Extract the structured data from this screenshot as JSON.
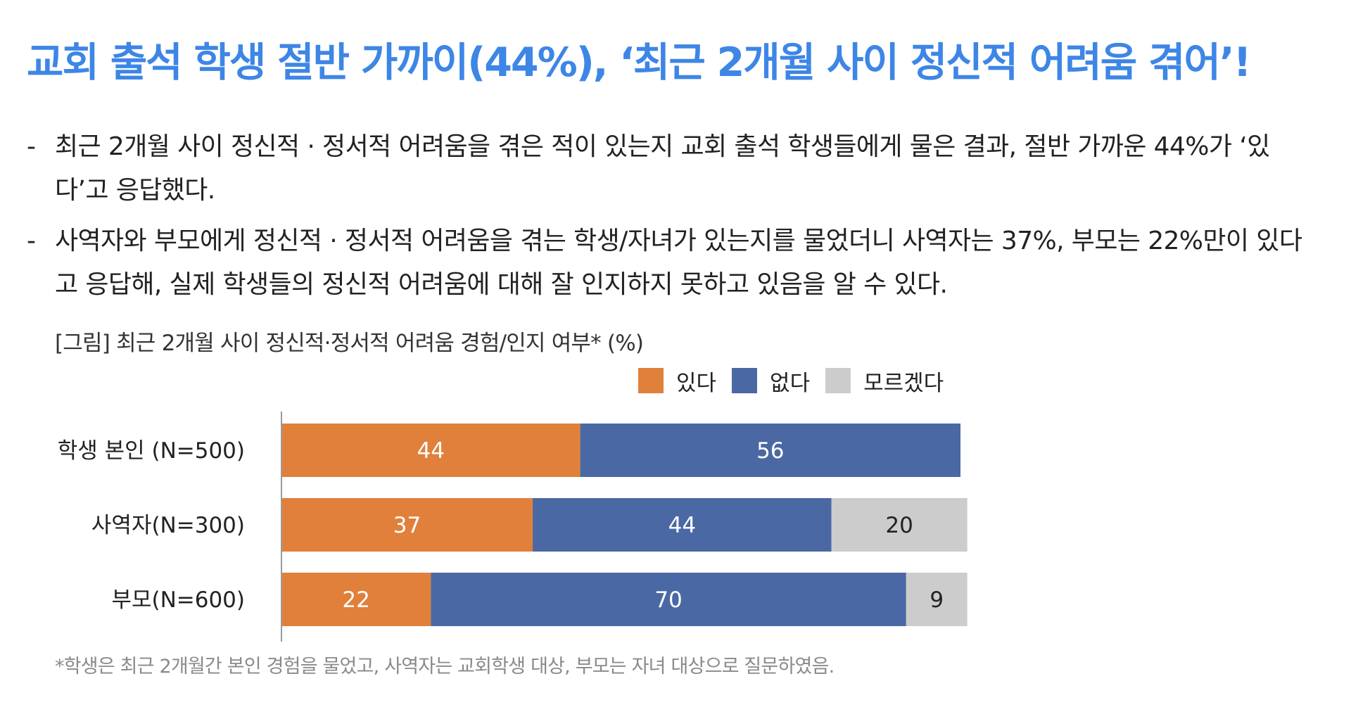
{
  "headline": "교회 출석 학생 절반 가까이(44%), ‘최근 2개월 사이 정신적 어려움 겪어’!",
  "bullets": [
    {
      "dash": "-",
      "text": "최근 2개월 사이 정신적 · 정서적 어려움을 겪은 적이 있는지 교회 출석 학생들에게 물은 결과, 절반 가까운 44%가 ‘있다’고 응답했다."
    },
    {
      "dash": "-",
      "text": "사역자와 부모에게 정신적 · 정서적 어려움을 겪는 학생/자녀가 있는지를 물었더니 사역자는 37%, 부모는 22%만이 있다고 응답해, 실제 학생들의 정신적 어려움에 대해 잘 인지하지 못하고 있음을 알 수 있다."
    }
  ],
  "figure_caption": "[그림] 최근 2개월 사이 정신적·정서적 어려움 경험/인지 여부* (%)",
  "footnote": "*학생은 최근 2개월간 본인 경험을 물었고, 사역자는 교회학생 대상, 부모는 자녀 대상으로 질문하였음.",
  "legend": [
    {
      "label": "있다",
      "color": "#e0803b"
    },
    {
      "label": "없다",
      "color": "#4a68a3"
    },
    {
      "label": "모르겠다",
      "color": "#cccccc"
    }
  ],
  "chart_data": {
    "type": "bar",
    "orientation": "horizontal",
    "stacked": true,
    "title": "[그림] 최근 2개월 사이 정신적·정서적 어려움 경험/인지 여부* (%)",
    "categories": [
      "학생 본인 (N=500)",
      "사역자(N=300)",
      "부모(N=600)"
    ],
    "series": [
      {
        "name": "있다",
        "color": "#e0803b",
        "label_color": "#ffffff",
        "values": [
          44,
          37,
          22
        ]
      },
      {
        "name": "없다",
        "color": "#4a68a3",
        "label_color": "#ffffff",
        "values": [
          56,
          44,
          70
        ]
      },
      {
        "name": "모르겠다",
        "color": "#cccccc",
        "label_color": "#222222",
        "values": [
          0,
          20,
          9
        ]
      }
    ],
    "xlim": [
      0,
      100
    ],
    "legend_position": "top-right",
    "grid": false
  }
}
